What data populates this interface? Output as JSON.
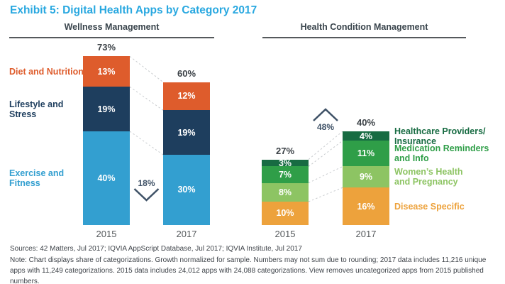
{
  "title": "Exhibit 5: Digital Health Apps by Category 2017",
  "colors": {
    "title_accent": "#29A8E0",
    "connector_gray": "#C9CCCF",
    "growth_marker": "#3E5166",
    "total_label": "#3C4247",
    "axis_label": "#55595C",
    "header_text": "#39444C"
  },
  "chart_data": [
    {
      "type": "bar",
      "stacked": true,
      "panel": "Wellness Management",
      "unit": "%",
      "categories": [
        "2015",
        "2017"
      ],
      "totals": [
        73,
        60
      ],
      "series": [
        {
          "name": "Diet and Nutrition",
          "label_lines": [
            "Diet and Nutrition"
          ],
          "color": "#DE5C2C",
          "values": [
            13,
            12
          ]
        },
        {
          "name": "Lifestyle and Stress",
          "label_lines": [
            "Lifestyle and Stress"
          ],
          "color": "#1E3E5E",
          "values": [
            19,
            19
          ]
        },
        {
          "name": "Exercise and Fitness",
          "label_lines": [
            "Exercise and Fitness"
          ],
          "color": "#339FD0",
          "values": [
            40,
            30
          ]
        }
      ],
      "growth": {
        "label": "18%",
        "direction": "down"
      },
      "legend_position": "left"
    },
    {
      "type": "bar",
      "stacked": true,
      "panel": "Health Condition Management",
      "unit": "%",
      "categories": [
        "2015",
        "2017"
      ],
      "totals": [
        27,
        40
      ],
      "series": [
        {
          "name": "Healthcare Providers/Insurance",
          "label_lines": [
            "Healthcare Providers/",
            "Insurance"
          ],
          "color": "#176B42",
          "values": [
            3,
            4
          ]
        },
        {
          "name": "Medication Reminders and Info",
          "label_lines": [
            "Medication Reminders",
            "and Info"
          ],
          "color": "#2F9E48",
          "values": [
            7,
            11
          ]
        },
        {
          "name": "Women’s Health and Pregnancy",
          "label_lines": [
            "Women’s Health",
            "and Pregnancy"
          ],
          "color": "#8DC463",
          "values": [
            8,
            9
          ]
        },
        {
          "name": "Disease Specific",
          "label_lines": [
            "Disease Specific"
          ],
          "color": "#EDA23C",
          "values": [
            10,
            16
          ]
        }
      ],
      "growth": {
        "label": "48%",
        "direction": "up"
      },
      "legend_position": "right"
    }
  ],
  "footer": {
    "sources": "Sources: 42 Matters, Jul 2017; IQVIA AppScript Database, Jul 2017; IQVIA Institute, Jul 2017",
    "note": "Note: Chart displays share of categorizations. Growth normalized for sample. Numbers may not sum due to rounding; 2017 data includes 11,216 unique apps with 11,249 categorizations. 2015 data includes 24,012 apps with 24,088 categorizations. View removes uncategorized apps from 2015 published numbers."
  }
}
